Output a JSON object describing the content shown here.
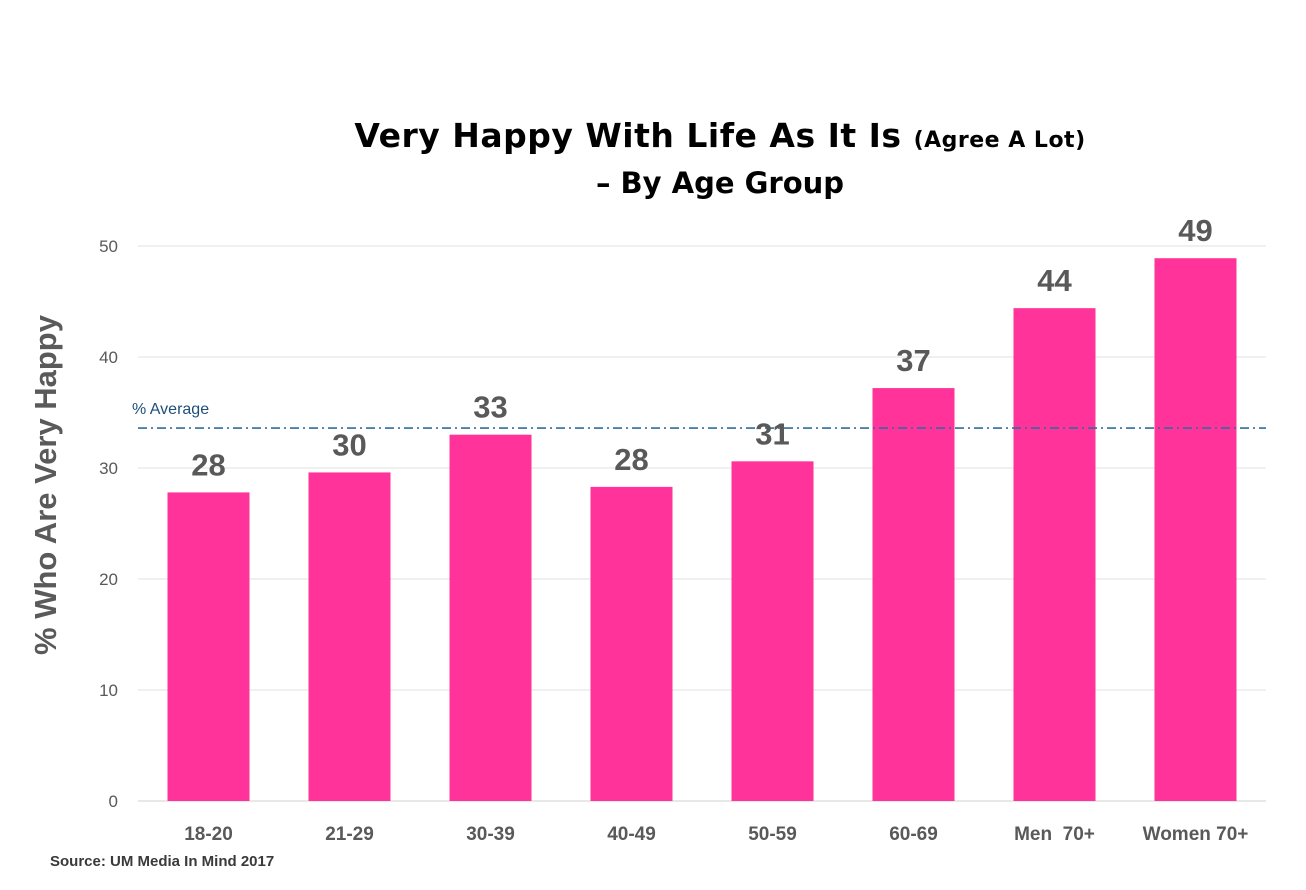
{
  "chart_data": {
    "type": "bar",
    "title_main": "Very Happy With Life As It Is",
    "title_qualifier": "(Agree A Lot)",
    "subtitle": "– By Age Group",
    "ylabel": "% Who Are Very Happy",
    "xlabel": "",
    "categories": [
      "18-20",
      "21-29",
      "30-39",
      "40-49",
      "50-59",
      "60-69",
      "Men  70+",
      "Women 70+"
    ],
    "values": [
      27.8,
      29.6,
      33.0,
      28.3,
      30.6,
      37.2,
      44.4,
      48.9
    ],
    "data_labels": [
      "28",
      "30",
      "33",
      "28",
      "31",
      "37",
      "44",
      "49"
    ],
    "ylim": [
      0,
      50
    ],
    "yticks": [
      0,
      10,
      20,
      30,
      40,
      50
    ],
    "grid": true,
    "reference_line": {
      "label": "% Average",
      "value": 33.6,
      "style": "dash-dot",
      "color": "#2e6f9e"
    },
    "bar_color": "#ff3399",
    "source": "Source: UM Media In Mind 2017"
  }
}
